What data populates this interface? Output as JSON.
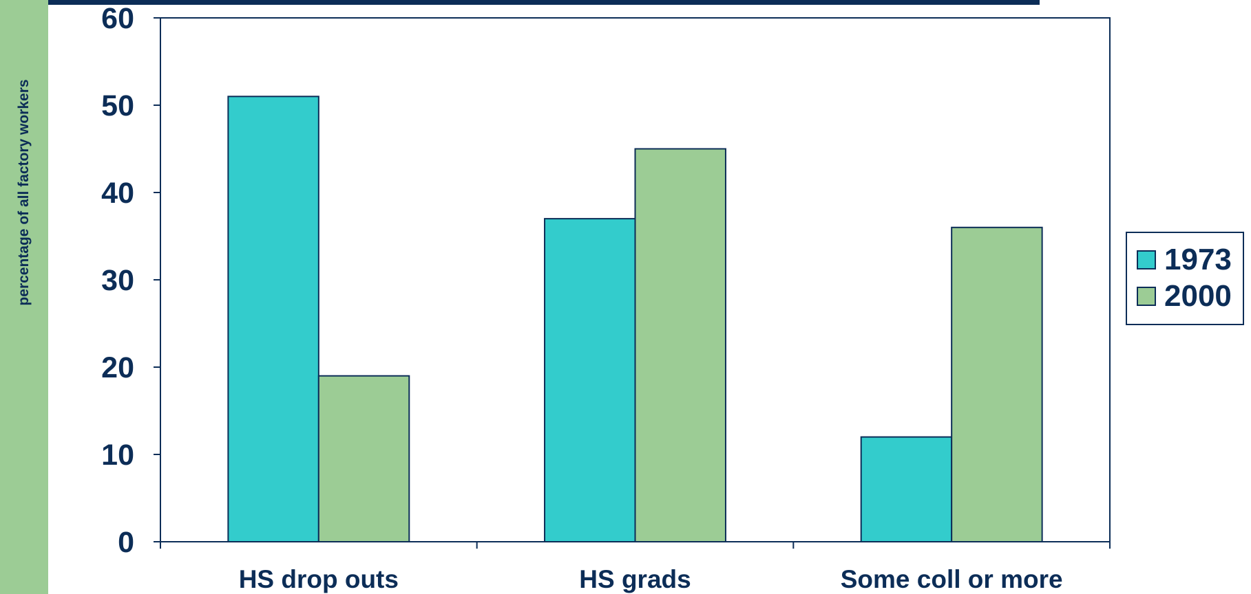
{
  "chart_data": {
    "type": "bar",
    "categories": [
      "HS drop outs",
      "HS grads",
      "Some coll or more"
    ],
    "series": [
      {
        "name": "1973",
        "values": [
          51,
          37,
          12
        ],
        "color": "#33cccc"
      },
      {
        "name": "2000",
        "values": [
          19,
          45,
          36
        ],
        "color": "#9ccc95"
      }
    ],
    "ylabel": "percentage of all factory workers",
    "xlabel": "",
    "ylim": [
      0,
      60
    ],
    "yticks": [
      0,
      10,
      20,
      30,
      40,
      50,
      60
    ],
    "grid": false,
    "legend_position": "right"
  },
  "colors": {
    "axis": "#0c2d57",
    "top_bar": "#0c2d57",
    "side_strip": "#9ccc95"
  }
}
